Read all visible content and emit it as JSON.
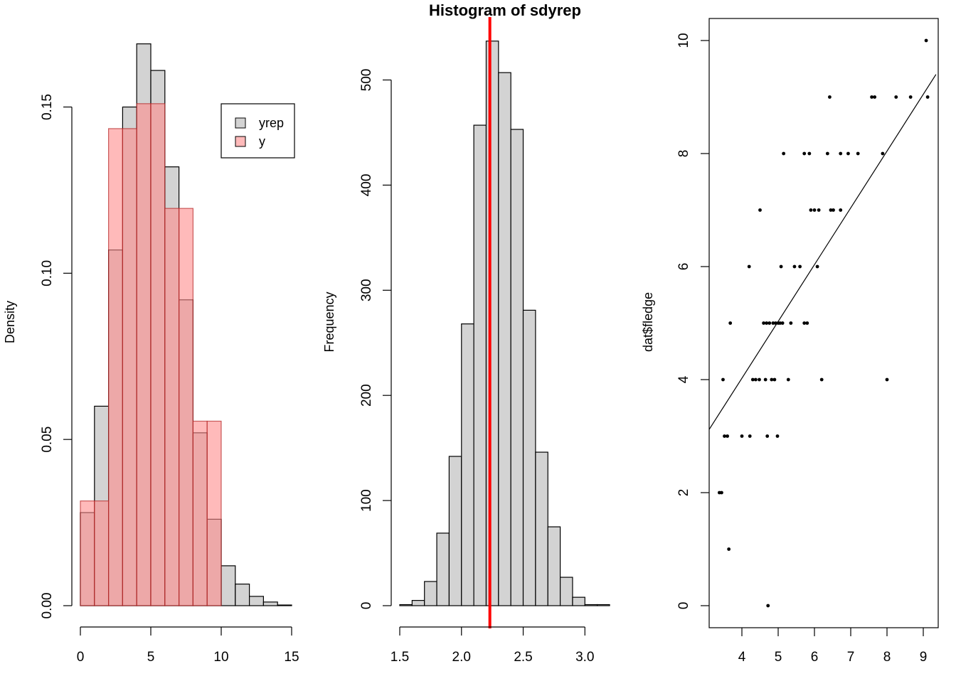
{
  "chart_data": [
    {
      "type": "bar",
      "subtype": "overlaid-histograms",
      "title": "",
      "xlabel": "",
      "ylabel": "Density",
      "xlim": [
        0,
        15
      ],
      "ylim": [
        0,
        0.17
      ],
      "x_ticks": [
        "0",
        "5",
        "10",
        "15"
      ],
      "y_ticks": [
        "0.00",
        "0.05",
        "0.10",
        "0.15"
      ],
      "legend": {
        "position": "top-right",
        "entries": [
          "yrep",
          "y"
        ]
      },
      "series": [
        {
          "name": "yrep",
          "color": "#d3d3d3",
          "bin_width": 1,
          "bins": [
            {
              "x0": 0,
              "x1": 1,
              "y": 0.028
            },
            {
              "x0": 1,
              "x1": 2,
              "y": 0.06
            },
            {
              "x0": 2,
              "x1": 3,
              "y": 0.107
            },
            {
              "x0": 3,
              "x1": 4,
              "y": 0.15
            },
            {
              "x0": 4,
              "x1": 5,
              "y": 0.169
            },
            {
              "x0": 5,
              "x1": 6,
              "y": 0.161
            },
            {
              "x0": 6,
              "x1": 7,
              "y": 0.132
            },
            {
              "x0": 7,
              "x1": 8,
              "y": 0.092
            },
            {
              "x0": 8,
              "x1": 9,
              "y": 0.052
            },
            {
              "x0": 9,
              "x1": 10,
              "y": 0.026
            },
            {
              "x0": 10,
              "x1": 11,
              "y": 0.012
            },
            {
              "x0": 11,
              "x1": 12,
              "y": 0.0065
            },
            {
              "x0": 12,
              "x1": 13,
              "y": 0.0028
            },
            {
              "x0": 13,
              "x1": 14,
              "y": 0.0011
            },
            {
              "x0": 14,
              "x1": 15,
              "y": 0.0002
            }
          ]
        },
        {
          "name": "y",
          "color": "#ff8c8c",
          "bin_width": 1.5,
          "bins": [
            {
              "x0": 0,
              "x1": 1,
              "y": 0.0315
            },
            {
              "x0": 1,
              "x1": 2,
              "y": 0.0315
            },
            {
              "x0": 2,
              "x1": 3,
              "y": 0.1435
            },
            {
              "x0": 3,
              "x1": 4,
              "y": 0.1435
            },
            {
              "x0": 4,
              "x1": 5,
              "y": 0.151
            },
            {
              "x0": 5,
              "x1": 6,
              "y": 0.151
            },
            {
              "x0": 6,
              "x1": 7,
              "y": 0.1195
            },
            {
              "x0": 7,
              "x1": 8,
              "y": 0.1195
            },
            {
              "x0": 8,
              "x1": 9,
              "y": 0.0555
            },
            {
              "x0": 9,
              "x1": 10,
              "y": 0.0555
            }
          ]
        }
      ]
    },
    {
      "type": "bar",
      "subtype": "histogram",
      "title": "Histogram of sdyrep",
      "xlabel": "",
      "ylabel": "Frequency",
      "xlim": [
        1.5,
        3.2
      ],
      "ylim": [
        0,
        540
      ],
      "x_ticks": [
        "1.5",
        "2.0",
        "2.5",
        "3.0"
      ],
      "y_ticks": [
        "0",
        "100",
        "200",
        "300",
        "400",
        "500"
      ],
      "bar_color": "#d3d3d3",
      "reference_line": {
        "x": 2.23,
        "color": "#ff0000"
      },
      "bins": [
        {
          "x0": 1.5,
          "x1": 1.6,
          "y": 1
        },
        {
          "x0": 1.6,
          "x1": 1.7,
          "y": 5
        },
        {
          "x0": 1.7,
          "x1": 1.8,
          "y": 23
        },
        {
          "x0": 1.8,
          "x1": 1.9,
          "y": 69
        },
        {
          "x0": 1.9,
          "x1": 2.0,
          "y": 142
        },
        {
          "x0": 2.0,
          "x1": 2.1,
          "y": 268
        },
        {
          "x0": 2.1,
          "x1": 2.2,
          "y": 457
        },
        {
          "x0": 2.2,
          "x1": 2.3,
          "y": 537
        },
        {
          "x0": 2.3,
          "x1": 2.4,
          "y": 507
        },
        {
          "x0": 2.4,
          "x1": 2.5,
          "y": 453
        },
        {
          "x0": 2.5,
          "x1": 2.6,
          "y": 281
        },
        {
          "x0": 2.6,
          "x1": 2.7,
          "y": 146
        },
        {
          "x0": 2.7,
          "x1": 2.8,
          "y": 75
        },
        {
          "x0": 2.8,
          "x1": 2.9,
          "y": 27
        },
        {
          "x0": 2.9,
          "x1": 3.0,
          "y": 8
        },
        {
          "x0": 3.0,
          "x1": 3.1,
          "y": 1
        },
        {
          "x0": 3.1,
          "x1": 3.2,
          "y": 1
        }
      ]
    },
    {
      "type": "scatter",
      "title": "",
      "xlabel": "",
      "ylabel": "dat$fledge",
      "xlim": [
        3.1,
        9.35
      ],
      "ylim": [
        -0.3,
        10.3
      ],
      "x_ticks": [
        "4",
        "5",
        "6",
        "7",
        "8",
        "9"
      ],
      "y_ticks": [
        "0",
        "2",
        "4",
        "6",
        "8",
        "10"
      ],
      "fit_line": {
        "x0": 3.1,
        "y0": 3.12,
        "x1": 9.35,
        "y1": 9.4
      },
      "points": [
        [
          3.38,
          2
        ],
        [
          3.44,
          2
        ],
        [
          3.48,
          4
        ],
        [
          3.52,
          3
        ],
        [
          3.6,
          3
        ],
        [
          3.64,
          1
        ],
        [
          3.68,
          5
        ],
        [
          4,
          3
        ],
        [
          4.2,
          6
        ],
        [
          4.22,
          3
        ],
        [
          4.3,
          4
        ],
        [
          4.38,
          4
        ],
        [
          4.48,
          4
        ],
        [
          4.5,
          7
        ],
        [
          4.6,
          5
        ],
        [
          4.65,
          4
        ],
        [
          4.68,
          5
        ],
        [
          4.7,
          3
        ],
        [
          4.72,
          0
        ],
        [
          4.76,
          5
        ],
        [
          4.82,
          4
        ],
        [
          4.86,
          5
        ],
        [
          4.9,
          4
        ],
        [
          4.93,
          5
        ],
        [
          4.98,
          3
        ],
        [
          5.0,
          5
        ],
        [
          5.05,
          5
        ],
        [
          5.08,
          6
        ],
        [
          5.12,
          5
        ],
        [
          5.15,
          8
        ],
        [
          5.28,
          4
        ],
        [
          5.35,
          5
        ],
        [
          5.45,
          6
        ],
        [
          5.6,
          6
        ],
        [
          5.72,
          8
        ],
        [
          5.72,
          5
        ],
        [
          5.8,
          5
        ],
        [
          5.86,
          8
        ],
        [
          5.9,
          7
        ],
        [
          6.0,
          7
        ],
        [
          6.08,
          6
        ],
        [
          6.12,
          7
        ],
        [
          6.2,
          4
        ],
        [
          6.36,
          8
        ],
        [
          6.42,
          9
        ],
        [
          6.45,
          7
        ],
        [
          6.52,
          7
        ],
        [
          6.72,
          7
        ],
        [
          6.72,
          8
        ],
        [
          6.93,
          8
        ],
        [
          7.2,
          8
        ],
        [
          7.58,
          9
        ],
        [
          7.66,
          9
        ],
        [
          7.88,
          8
        ],
        [
          8.0,
          4
        ],
        [
          8.25,
          9
        ],
        [
          8.65,
          9
        ],
        [
          9.08,
          10
        ],
        [
          9.12,
          9
        ]
      ]
    }
  ]
}
